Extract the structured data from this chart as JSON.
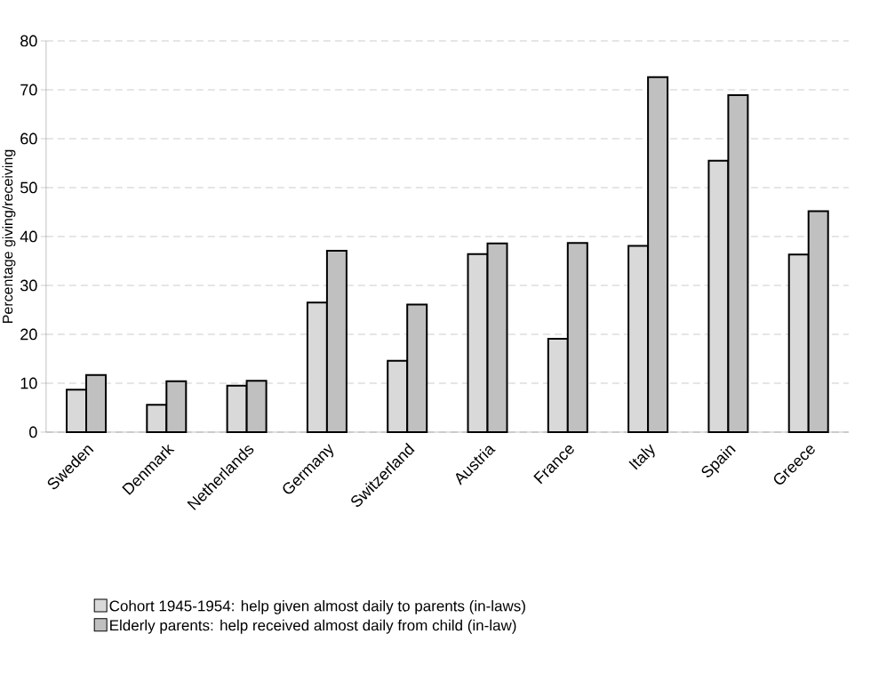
{
  "chart_data": {
    "type": "bar",
    "ylabel": "Percentage giving/receiving",
    "categories": [
      "Sweden",
      "Denmark",
      "Netherlands",
      "Germany",
      "Switzerland",
      "Austria",
      "France",
      "Italy",
      "Spain",
      "Greece"
    ],
    "series": [
      {
        "name": "Cohort 1945-1954: help given almost daily to parents (in-laws)",
        "color": "#d9d9d9",
        "values": [
          8.7,
          5.6,
          9.5,
          26.5,
          14.6,
          36.4,
          19.1,
          38.1,
          55.5,
          36.3
        ]
      },
      {
        "name": "Elderly parents: help received almost daily from child (in-law)",
        "color": "#c0c0c0",
        "values": [
          11.7,
          10.4,
          10.5,
          37.1,
          26.1,
          38.6,
          38.7,
          72.6,
          68.9,
          45.2
        ]
      }
    ],
    "ylim": [
      0,
      80
    ],
    "yticks": [
      0,
      10,
      20,
      30,
      40,
      50,
      60,
      70,
      80
    ],
    "grid": "y",
    "legend": "bottom"
  }
}
